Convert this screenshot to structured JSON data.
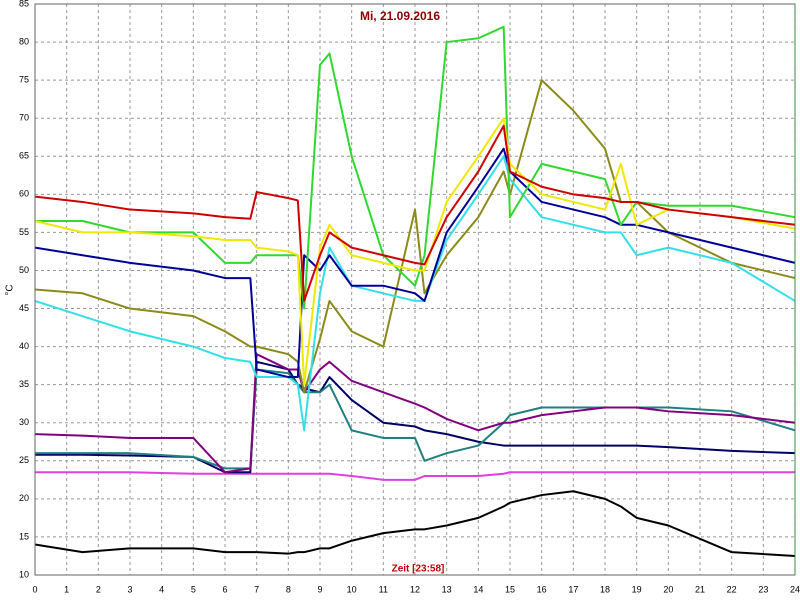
{
  "chart_data": {
    "type": "line",
    "title": "Mi, 21.09.2016",
    "y_label": "°C",
    "x_label": "Zeit [23:58]",
    "grid": true,
    "xlim": [
      0,
      24
    ],
    "xticks": [
      0,
      1,
      2,
      3,
      4,
      5,
      6,
      7,
      8,
      9,
      10,
      11,
      12,
      13,
      14,
      15,
      16,
      17,
      18,
      19,
      20,
      21,
      22,
      23,
      24
    ],
    "ylim": [
      10,
      85
    ],
    "yticks": [
      10,
      15,
      20,
      25,
      30,
      35,
      40,
      45,
      50,
      55,
      60,
      65,
      70,
      75,
      80,
      85
    ],
    "x": [
      0,
      1.5,
      3,
      5,
      6,
      6.8,
      7,
      8,
      8.3,
      8.5,
      9,
      9.3,
      10,
      11,
      12,
      12.3,
      13,
      14,
      14.8,
      15,
      16,
      17,
      18,
      18.5,
      19,
      20,
      22,
      24
    ],
    "series": [
      {
        "color": "#000000",
        "values": [
          14,
          13,
          13.5,
          13.5,
          13,
          13,
          13,
          12.8,
          13,
          13,
          13.5,
          13.5,
          14.5,
          15.5,
          16,
          16,
          16.5,
          17.5,
          19,
          19.5,
          20.5,
          21,
          20,
          19,
          17.5,
          16.5,
          13,
          12.5
        ]
      },
      {
        "color": "#e040e0",
        "values": [
          23.5,
          23.5,
          23.5,
          23.3,
          23.3,
          23.3,
          23.3,
          23.3,
          23.3,
          23.3,
          23.3,
          23.3,
          23,
          22.5,
          22.5,
          23,
          23,
          23,
          23.3,
          23.5,
          23.5,
          23.5,
          23.5,
          23.5,
          23.5,
          23.5,
          23.5,
          23.5
        ]
      },
      {
        "color": "#000066",
        "values": [
          25.8,
          25.8,
          25.7,
          25.5,
          23.5,
          23.5,
          38,
          37,
          35,
          34.5,
          34,
          36,
          33,
          30,
          29.5,
          29,
          28.5,
          27.5,
          27,
          27,
          27,
          27,
          27,
          27,
          27,
          26.8,
          26.3,
          26
        ]
      },
      {
        "color": "#208080",
        "values": [
          26,
          26,
          26,
          25.5,
          24,
          24,
          37,
          36.5,
          35,
          34,
          34,
          35,
          29,
          28,
          28,
          25,
          26,
          27,
          30,
          31,
          32,
          32,
          32,
          32,
          32,
          32,
          31.5,
          29
        ]
      },
      {
        "color": "#800080",
        "values": [
          28.5,
          28.3,
          28,
          28,
          23.5,
          24,
          39,
          37,
          37,
          34,
          37,
          38,
          35.5,
          34,
          32.5,
          32,
          30.5,
          29,
          30,
          30,
          31,
          31.5,
          32,
          32,
          32,
          31.5,
          31,
          30
        ]
      },
      {
        "color": "#8b8b1a",
        "values": [
          47.5,
          47,
          45,
          44,
          42,
          40,
          40,
          39,
          38,
          34,
          41,
          46,
          42,
          40,
          58,
          47,
          52,
          57,
          63,
          60,
          75,
          71,
          66,
          59,
          59,
          55,
          51,
          49
        ]
      },
      {
        "color": "#33e0e8",
        "values": [
          46,
          44,
          42,
          40,
          38.5,
          38,
          36,
          36,
          35,
          29,
          47,
          53,
          48,
          47,
          46,
          46,
          54,
          60,
          65,
          62,
          57,
          56,
          55,
          55,
          52,
          53,
          51,
          46
        ]
      },
      {
        "color": "#000099",
        "values": [
          53,
          52,
          51,
          50,
          49,
          49,
          37,
          36,
          36,
          52,
          50,
          52,
          48,
          48,
          47,
          46,
          55,
          61,
          66,
          63,
          59,
          58,
          57,
          56,
          56,
          55,
          53,
          51
        ]
      },
      {
        "color": "#30d830",
        "values": [
          56.5,
          56.5,
          55,
          55,
          51,
          51,
          52,
          52,
          52,
          45,
          77,
          78.5,
          65,
          52,
          48,
          52,
          80,
          80.5,
          82,
          57,
          64,
          63,
          62,
          56,
          59,
          58.5,
          58.5,
          57
        ]
      },
      {
        "color": "#f0e800",
        "values": [
          56.5,
          55,
          55,
          54.5,
          54,
          54,
          53,
          52.5,
          52,
          35,
          53,
          56,
          52,
          51,
          50,
          50,
          59,
          65,
          70,
          64,
          60,
          59,
          58,
          64,
          56,
          58,
          57,
          55.5
        ]
      },
      {
        "color": "#d00000",
        "values": [
          59.7,
          59,
          58,
          57.5,
          57,
          56.8,
          60.3,
          59.5,
          59.2,
          46,
          52,
          55,
          53,
          52,
          51,
          50.8,
          57,
          63,
          69,
          63,
          61,
          60,
          59.5,
          59,
          59,
          58,
          57,
          56
        ]
      }
    ]
  }
}
